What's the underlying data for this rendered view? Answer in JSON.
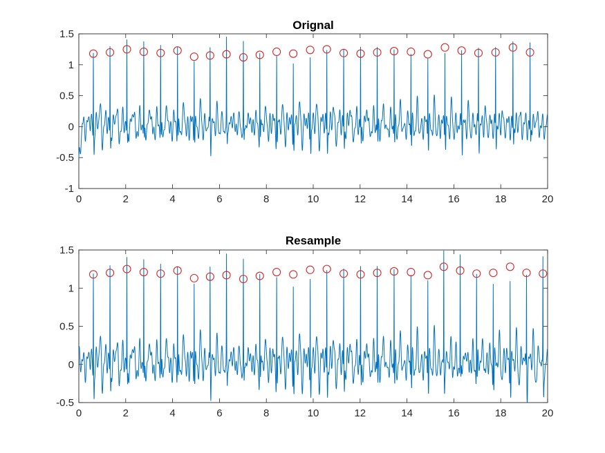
{
  "colors": {
    "signal": "#0072BD",
    "peak_marker": "#D62728",
    "axis": "#262626",
    "background": "#ffffff"
  },
  "chart_data": [
    {
      "type": "line",
      "title": "Orignal",
      "xlabel": "",
      "ylabel": "",
      "xlim": [
        0,
        20
      ],
      "ylim": [
        -1,
        1.5
      ],
      "xticks": [
        0,
        2,
        4,
        6,
        8,
        10,
        12,
        14,
        16,
        18,
        20
      ],
      "yticks": [
        -1,
        -0.5,
        0,
        0.5,
        1,
        1.5
      ],
      "grid": false,
      "series": [
        {
          "marker": "line",
          "peak_x": [
            0.62,
            1.33,
            2.05,
            2.77,
            3.49,
            4.21,
            4.92,
            5.6,
            6.3,
            7.02,
            7.72,
            8.44,
            9.15,
            9.87,
            10.58,
            11.3,
            12.02,
            12.73,
            13.45,
            14.17,
            14.89,
            15.62,
            16.33,
            17.05,
            17.78,
            18.52,
            19.25
          ],
          "peak_y": [
            1.18,
            1.2,
            1.25,
            1.21,
            1.19,
            1.23,
            1.13,
            1.15,
            1.17,
            1.12,
            1.16,
            1.21,
            1.18,
            1.24,
            1.25,
            1.19,
            1.18,
            1.2,
            1.22,
            1.21,
            1.17,
            1.28,
            1.23,
            1.19,
            1.2,
            1.28,
            1.2
          ]
        },
        {
          "marker": "circle",
          "x": [
            0.62,
            1.33,
            2.05,
            2.77,
            3.49,
            4.21,
            4.92,
            5.6,
            6.3,
            7.02,
            7.72,
            8.44,
            9.15,
            9.87,
            10.58,
            11.3,
            12.02,
            12.73,
            13.45,
            14.17,
            14.89,
            15.62,
            16.33,
            17.05,
            17.78,
            18.52,
            19.25
          ],
          "y": [
            1.18,
            1.2,
            1.25,
            1.21,
            1.19,
            1.23,
            1.13,
            1.15,
            1.17,
            1.12,
            1.16,
            1.21,
            1.18,
            1.24,
            1.25,
            1.19,
            1.18,
            1.2,
            1.22,
            1.21,
            1.17,
            1.28,
            1.23,
            1.19,
            1.2,
            1.28,
            1.2
          ]
        }
      ]
    },
    {
      "type": "line",
      "title": "Resample",
      "xlabel": "",
      "ylabel": "",
      "xlim": [
        0,
        20
      ],
      "ylim": [
        -0.5,
        1.5
      ],
      "xticks": [
        0,
        2,
        4,
        6,
        8,
        10,
        12,
        14,
        16,
        18,
        20
      ],
      "yticks": [
        -0.5,
        0,
        0.5,
        1,
        1.5
      ],
      "grid": false,
      "series": [
        {
          "marker": "line",
          "peak_x": [
            0.62,
            1.33,
            2.05,
            2.77,
            3.49,
            4.21,
            4.92,
            5.6,
            6.3,
            7.02,
            7.72,
            8.44,
            9.15,
            9.87,
            10.58,
            11.3,
            12.02,
            12.73,
            13.45,
            14.17,
            14.89,
            15.57,
            16.27,
            16.97,
            17.68,
            18.4,
            19.1,
            19.8
          ],
          "peak_y": [
            1.18,
            1.2,
            1.25,
            1.21,
            1.19,
            1.23,
            1.13,
            1.15,
            1.17,
            1.12,
            1.16,
            1.21,
            1.18,
            1.24,
            1.25,
            1.19,
            1.18,
            1.2,
            1.22,
            1.21,
            1.17,
            1.28,
            1.23,
            1.19,
            1.2,
            1.28,
            1.2,
            1.19
          ]
        },
        {
          "marker": "circle",
          "x": [
            0.62,
            1.33,
            2.05,
            2.77,
            3.49,
            4.21,
            4.92,
            5.6,
            6.3,
            7.02,
            7.72,
            8.44,
            9.15,
            9.87,
            10.58,
            11.3,
            12.02,
            12.73,
            13.45,
            14.17,
            14.89,
            15.57,
            16.27,
            16.97,
            17.68,
            18.4,
            19.1,
            19.8
          ],
          "y": [
            1.18,
            1.2,
            1.25,
            1.21,
            1.19,
            1.23,
            1.13,
            1.15,
            1.17,
            1.12,
            1.16,
            1.21,
            1.18,
            1.24,
            1.25,
            1.19,
            1.18,
            1.2,
            1.22,
            1.21,
            1.17,
            1.28,
            1.23,
            1.19,
            1.2,
            1.28,
            1.2,
            1.19
          ]
        }
      ]
    }
  ]
}
